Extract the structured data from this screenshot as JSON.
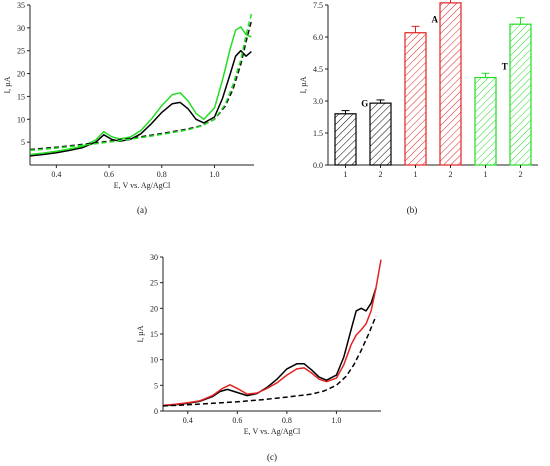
{
  "chart_data": [
    {
      "id": "a",
      "panel_label": "(a)",
      "type": "line",
      "xlabel": "E, V vs. Ag/AgCl",
      "ylabel": "I, µA",
      "xlim": [
        0.3,
        1.15
      ],
      "ylim": [
        0,
        35
      ],
      "xticks": [
        "0.4",
        "0.6",
        "0.8",
        "1.0"
      ],
      "yticks": [
        "5",
        "10",
        "15",
        "20",
        "25",
        "30",
        "35"
      ],
      "series": [
        {
          "color": "#000000",
          "style": "solid",
          "x": [
            0.3,
            0.35,
            0.4,
            0.45,
            0.5,
            0.55,
            0.58,
            0.61,
            0.64,
            0.68,
            0.72,
            0.76,
            0.8,
            0.84,
            0.87,
            0.9,
            0.93,
            0.96,
            1.0,
            1.03,
            1.06,
            1.08,
            1.1,
            1.12,
            1.14
          ],
          "y": [
            2.0,
            2.3,
            2.7,
            3.2,
            3.8,
            5.0,
            6.6,
            5.6,
            5.2,
            5.6,
            6.8,
            9.0,
            11.5,
            13.4,
            13.7,
            12.3,
            10.0,
            9.2,
            10.5,
            14.5,
            20.0,
            23.8,
            25.0,
            23.8,
            24.8
          ]
        },
        {
          "color": "#22dd22",
          "style": "solid",
          "x": [
            0.3,
            0.35,
            0.4,
            0.45,
            0.5,
            0.55,
            0.58,
            0.61,
            0.64,
            0.68,
            0.72,
            0.76,
            0.8,
            0.84,
            0.87,
            0.9,
            0.93,
            0.96,
            1.0,
            1.03,
            1.06,
            1.08,
            1.1,
            1.12,
            1.14
          ],
          "y": [
            2.3,
            2.6,
            3.0,
            3.5,
            4.1,
            5.5,
            7.3,
            6.2,
            5.7,
            6.1,
            7.5,
            10.0,
            13.0,
            15.4,
            15.8,
            14.0,
            11.3,
            10.0,
            12.5,
            18.5,
            25.5,
            29.5,
            30.2,
            28.5,
            28.0
          ]
        },
        {
          "color": "#111111",
          "style": "dashed",
          "x": [
            0.3,
            0.4,
            0.5,
            0.6,
            0.7,
            0.8,
            0.9,
            0.95,
            1.0,
            1.04,
            1.07,
            1.1,
            1.12,
            1.14
          ],
          "y": [
            3.4,
            3.9,
            4.5,
            5.2,
            6.0,
            6.9,
            7.9,
            8.6,
            10.0,
            12.8,
            16.5,
            22.0,
            27.0,
            31.5
          ]
        },
        {
          "color": "#22dd22",
          "style": "dashed",
          "x": [
            0.3,
            0.4,
            0.5,
            0.6,
            0.7,
            0.8,
            0.9,
            0.95,
            1.0,
            1.04,
            1.07,
            1.1,
            1.12,
            1.14
          ],
          "y": [
            3.2,
            3.7,
            4.3,
            5.0,
            5.8,
            6.7,
            7.7,
            8.5,
            10.0,
            13.2,
            17.5,
            23.0,
            28.5,
            33.0
          ]
        }
      ]
    },
    {
      "id": "b",
      "panel_label": "(b)",
      "type": "bar",
      "ylabel": "I, µA",
      "ylim": [
        0,
        7.5
      ],
      "yticks": [
        "0.0",
        "1.5",
        "3.0",
        "4.5",
        "6.0",
        "7.5"
      ],
      "categories": [
        "1",
        "2",
        "1",
        "2",
        "1",
        "2"
      ],
      "values": [
        2.4,
        2.9,
        6.2,
        7.6,
        4.1,
        6.6
      ],
      "errors": [
        0.15,
        0.15,
        0.3,
        0.35,
        0.2,
        0.3
      ],
      "colors": [
        "#000000",
        "#000000",
        "#e32222",
        "#e32222",
        "#22dd22",
        "#22dd22"
      ],
      "group_labels": [
        {
          "text": "G",
          "bar": 0,
          "color": "#000000"
        },
        {
          "text": "A",
          "bar": 2,
          "color": "#000000"
        },
        {
          "text": "T",
          "bar": 4,
          "color": "#000000"
        }
      ]
    },
    {
      "id": "c",
      "panel_label": "(c)",
      "type": "line",
      "xlabel": "E, V vs. Ag/AgCl",
      "ylabel": "I, µA",
      "xlim": [
        0.3,
        1.18
      ],
      "ylim": [
        0,
        30
      ],
      "xticks": [
        "0.4",
        "0.6",
        "0.8",
        "1.0"
      ],
      "yticks": [
        "0",
        "5",
        "10",
        "15",
        "20",
        "25",
        "30"
      ],
      "series": [
        {
          "color": "#000000",
          "style": "solid",
          "x": [
            0.3,
            0.35,
            0.4,
            0.45,
            0.5,
            0.53,
            0.56,
            0.6,
            0.64,
            0.68,
            0.72,
            0.76,
            0.8,
            0.84,
            0.87,
            0.9,
            0.93,
            0.96,
            1.0,
            1.03,
            1.06,
            1.08,
            1.1,
            1.12,
            1.14,
            1.16
          ],
          "y": [
            1.0,
            1.2,
            1.5,
            1.9,
            2.8,
            3.8,
            4.2,
            3.6,
            3.0,
            3.4,
            4.6,
            6.2,
            8.2,
            9.2,
            9.2,
            8.0,
            6.6,
            6.0,
            7.0,
            10.5,
            16.0,
            19.5,
            20.0,
            19.5,
            21.0,
            24.0
          ]
        },
        {
          "color": "#e32222",
          "style": "solid",
          "x": [
            0.3,
            0.35,
            0.4,
            0.45,
            0.5,
            0.54,
            0.57,
            0.6,
            0.64,
            0.68,
            0.72,
            0.76,
            0.8,
            0.84,
            0.87,
            0.9,
            0.93,
            0.96,
            1.0,
            1.03,
            1.06,
            1.08,
            1.1,
            1.12,
            1.14,
            1.16,
            1.18
          ],
          "y": [
            1.1,
            1.3,
            1.6,
            2.0,
            3.0,
            4.4,
            5.1,
            4.4,
            3.3,
            3.5,
            4.4,
            5.5,
            7.0,
            8.2,
            8.4,
            7.4,
            6.2,
            5.7,
            6.4,
            9.0,
            13.0,
            14.8,
            15.8,
            17.0,
            19.5,
            24.0,
            29.5
          ]
        },
        {
          "color": "#000000",
          "style": "dashed",
          "x": [
            0.3,
            0.4,
            0.5,
            0.6,
            0.7,
            0.8,
            0.9,
            0.95,
            1.0,
            1.04,
            1.07,
            1.1,
            1.13,
            1.16
          ],
          "y": [
            1.0,
            1.2,
            1.5,
            1.8,
            2.2,
            2.7,
            3.3,
            3.9,
            5.0,
            6.8,
            9.0,
            11.8,
            15.0,
            18.5
          ]
        }
      ]
    }
  ]
}
